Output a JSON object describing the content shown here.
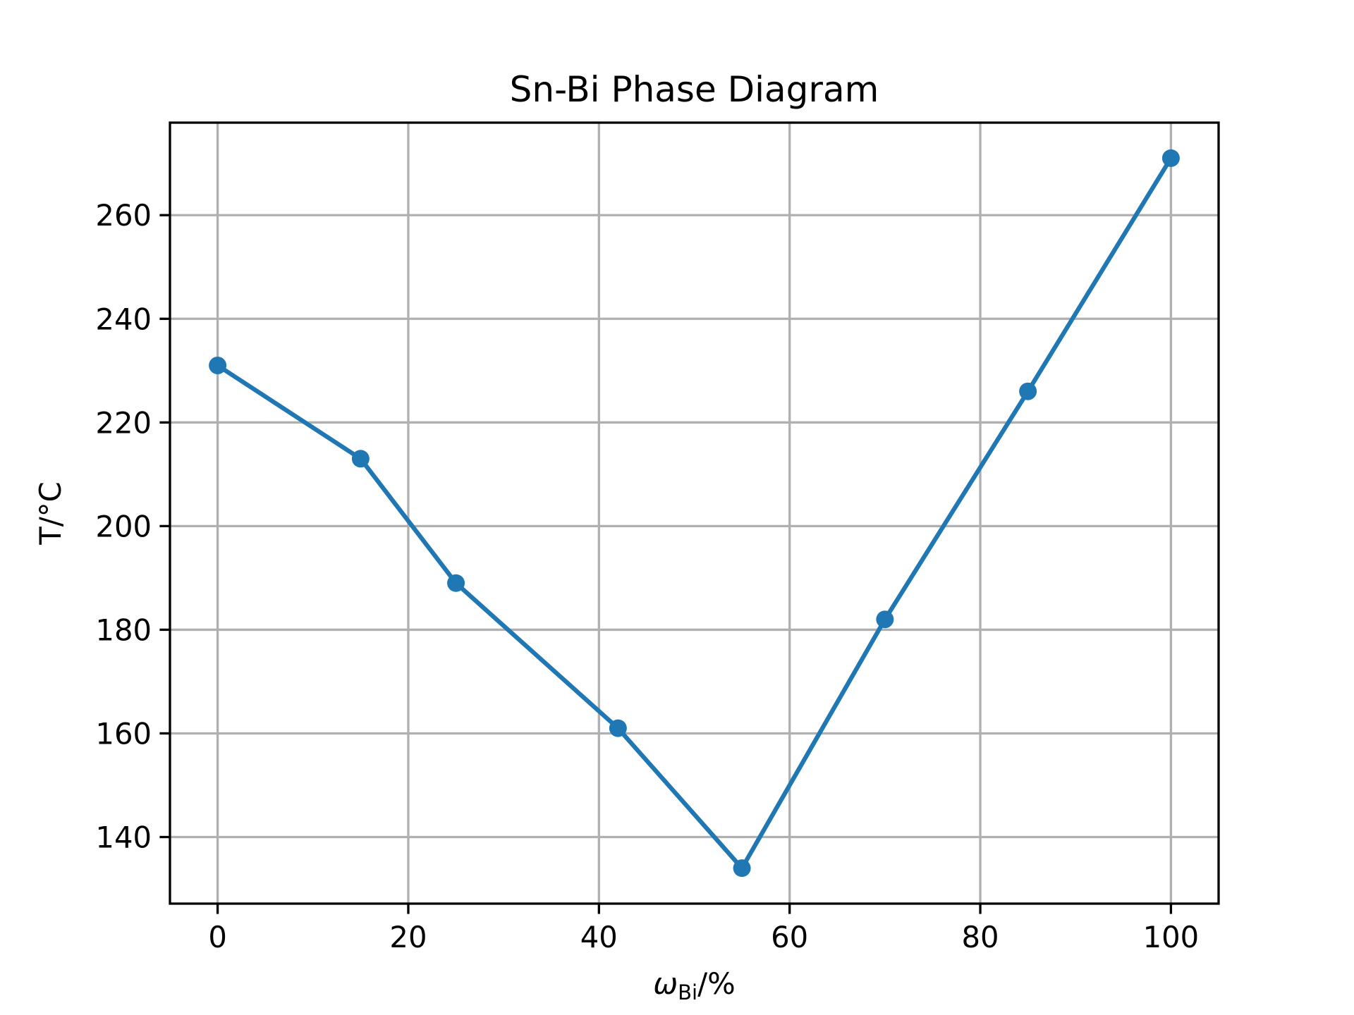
{
  "chart_data": {
    "type": "line",
    "title": "Sn-Bi Phase Diagram",
    "xlabel": {
      "main": "ω",
      "sub": "Bi",
      "suffix": "/%"
    },
    "ylabel": "T/°C",
    "x": [
      0,
      15,
      25,
      42,
      55,
      70,
      85,
      100
    ],
    "series": [
      {
        "values": [
          231,
          213,
          189,
          161,
          134,
          182,
          226,
          271
        ],
        "color": "#1f77b4",
        "marker": "circle"
      }
    ],
    "xlim": [
      -5,
      105
    ],
    "ylim": [
      127.15,
      277.85
    ],
    "xticks": [
      0,
      20,
      40,
      60,
      80,
      100
    ],
    "yticks": [
      140,
      160,
      180,
      200,
      220,
      240,
      260
    ],
    "grid": true,
    "grid_color": "#b0b0b0"
  }
}
